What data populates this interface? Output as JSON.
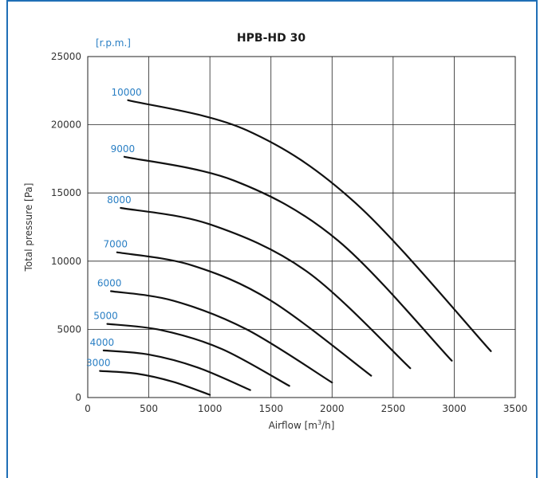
{
  "chart_data": {
    "type": "line",
    "title": "HPB-HD 30",
    "xlabel": "Airflow [m3/h]",
    "xlabel_main": "Airflow [m",
    "xlabel_sup": "3",
    "xlabel_end": "/h]",
    "ylabel": "Total pressure [Pa]",
    "unit_annotation": "[r.p.m.]",
    "xlim": [
      0,
      3500
    ],
    "ylim": [
      0,
      25000
    ],
    "x_ticks": [
      0,
      500,
      1000,
      1500,
      2000,
      2500,
      3000,
      3500
    ],
    "y_ticks": [
      0,
      5000,
      10000,
      15000,
      20000,
      25000
    ],
    "x_tick_labels": [
      "0",
      "500",
      "1000",
      "1500",
      "2000",
      "2500",
      "3000",
      "3500"
    ],
    "y_tick_labels": [
      "0",
      "5000",
      "10000",
      "15000",
      "20000",
      "25000"
    ],
    "grid": true,
    "line_color": "#111111",
    "label_color": "#2a7fc4",
    "series": [
      {
        "name": "3000",
        "label": "3000",
        "points": [
          [
            100,
            1950
          ],
          [
            400,
            1750
          ],
          [
            700,
            1150
          ],
          [
            1000,
            200
          ]
        ]
      },
      {
        "name": "4000",
        "label": "4000",
        "points": [
          [
            130,
            3450
          ],
          [
            500,
            3150
          ],
          [
            900,
            2200
          ],
          [
            1330,
            550
          ]
        ]
      },
      {
        "name": "5000",
        "label": "5000",
        "points": [
          [
            160,
            5400
          ],
          [
            600,
            4950
          ],
          [
            1100,
            3550
          ],
          [
            1650,
            850
          ]
        ]
      },
      {
        "name": "6000",
        "label": "6000",
        "points": [
          [
            190,
            7800
          ],
          [
            700,
            7100
          ],
          [
            1300,
            5000
          ],
          [
            2000,
            1100
          ]
        ]
      },
      {
        "name": "7000",
        "label": "7000",
        "points": [
          [
            240,
            10650
          ],
          [
            850,
            9700
          ],
          [
            1500,
            7100
          ],
          [
            2320,
            1600
          ]
        ]
      },
      {
        "name": "8000",
        "label": "8000",
        "points": [
          [
            270,
            13900
          ],
          [
            1000,
            12700
          ],
          [
            1800,
            9200
          ],
          [
            2640,
            2150
          ]
        ]
      },
      {
        "name": "9000",
        "label": "9000",
        "points": [
          [
            300,
            17650
          ],
          [
            1200,
            15900
          ],
          [
            2050,
            11500
          ],
          [
            2980,
            2700
          ]
        ]
      },
      {
        "name": "10000",
        "label": "10000",
        "points": [
          [
            330,
            21800
          ],
          [
            1300,
            19600
          ],
          [
            2200,
            14200
          ],
          [
            3300,
            3400
          ]
        ]
      }
    ]
  }
}
